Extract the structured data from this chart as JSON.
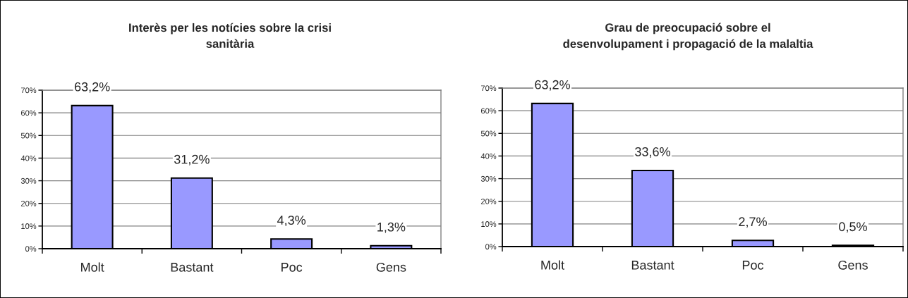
{
  "chart_data": [
    {
      "type": "bar",
      "title": "Interès per les notícies sobre la crisi\nsanitària",
      "categories": [
        "Molt",
        "Bastant",
        "Poc",
        "Gens"
      ],
      "values": [
        63.2,
        31.2,
        4.3,
        1.3
      ],
      "value_labels": [
        "63,2%",
        "31,2%",
        "4,3%",
        "1,3%"
      ],
      "color": "#9999ff",
      "ylim": [
        0,
        70
      ],
      "yticks": [
        {
          "value": 0,
          "label": "0%"
        },
        {
          "value": 10,
          "label": "10%"
        },
        {
          "value": 20,
          "label": "20%"
        },
        {
          "value": 30,
          "label": "30%"
        },
        {
          "value": 40,
          "label": "40%"
        },
        {
          "value": 50,
          "label": "50%"
        },
        {
          "value": 60,
          "label": "60%"
        },
        {
          "value": 70,
          "label": "70%"
        }
      ],
      "grid": "y"
    },
    {
      "type": "bar",
      "title": "Grau de preocupació sobre el\ndesenvolupament i propagació de la malaltia",
      "categories": [
        "Molt",
        "Bastant",
        "Poc",
        "Gens"
      ],
      "values": [
        63.2,
        33.6,
        2.7,
        0.5
      ],
      "value_labels": [
        "63,2%",
        "33,6%",
        "2,7%",
        "0,5%"
      ],
      "color": "#9999ff",
      "ylim": [
        0,
        70
      ],
      "yticks": [
        {
          "value": 0,
          "label": "0%"
        },
        {
          "value": 10,
          "label": "10%"
        },
        {
          "value": 20,
          "label": "20%"
        },
        {
          "value": 30,
          "label": "30%"
        },
        {
          "value": 40,
          "label": "40%"
        },
        {
          "value": 50,
          "label": "50%"
        },
        {
          "value": 60,
          "label": "60%"
        },
        {
          "value": 70,
          "label": "70%"
        }
      ],
      "grid": "y"
    }
  ]
}
